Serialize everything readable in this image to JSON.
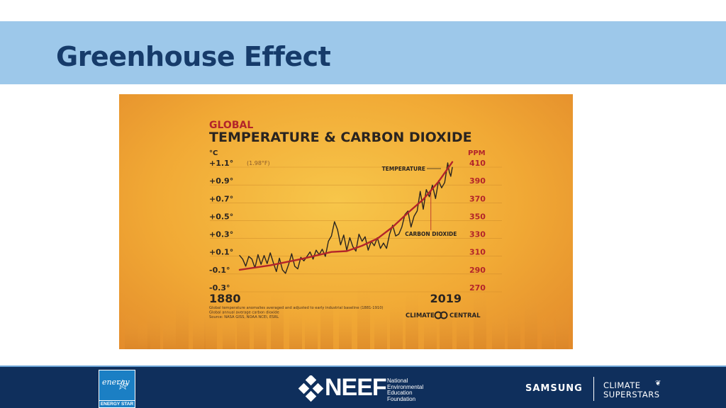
{
  "slide": {
    "title": "Greenhouse Effect"
  },
  "chart_data": {
    "type": "line",
    "title": "TEMPERATURE & CARBON DIOXIDE",
    "subtitle": "GLOBAL",
    "left_axis": {
      "unit": "°C",
      "ticks": [
        "+1.1°",
        "+0.9°",
        "+0.7°",
        "+0.5°",
        "+0.3°",
        "+0.1°",
        "-0.1°",
        "-0.3°"
      ],
      "tick_values": [
        1.1,
        0.9,
        0.7,
        0.5,
        0.3,
        0.1,
        -0.1,
        -0.3
      ],
      "top_note": "(1.98°F)",
      "ylim": [
        -0.3,
        1.1
      ]
    },
    "right_axis": {
      "unit": "PPM",
      "ticks": [
        "410",
        "390",
        "370",
        "350",
        "330",
        "310",
        "290",
        "270"
      ],
      "tick_values": [
        410,
        390,
        370,
        350,
        330,
        310,
        290,
        270
      ],
      "ylim": [
        270,
        410
      ]
    },
    "x_labels": {
      "start": "1880",
      "end": "2019"
    },
    "xlim": [
      1880,
      2019
    ],
    "series": [
      {
        "name": "TEMPERATURE",
        "axis": "left",
        "color": "#2a2420",
        "points": [
          [
            1880,
            0.06
          ],
          [
            1882,
            0.02
          ],
          [
            1884,
            -0.06
          ],
          [
            1886,
            0.05
          ],
          [
            1888,
            0.02
          ],
          [
            1890,
            -0.08
          ],
          [
            1892,
            0.07
          ],
          [
            1894,
            -0.04
          ],
          [
            1896,
            0.06
          ],
          [
            1898,
            -0.03
          ],
          [
            1900,
            0.09
          ],
          [
            1902,
            -0.02
          ],
          [
            1904,
            -0.12
          ],
          [
            1906,
            0.03
          ],
          [
            1908,
            -0.1
          ],
          [
            1910,
            -0.14
          ],
          [
            1912,
            -0.04
          ],
          [
            1914,
            0.08
          ],
          [
            1916,
            -0.06
          ],
          [
            1918,
            -0.09
          ],
          [
            1920,
            0.04
          ],
          [
            1922,
            0.0
          ],
          [
            1924,
            0.05
          ],
          [
            1926,
            0.1
          ],
          [
            1928,
            0.02
          ],
          [
            1930,
            0.12
          ],
          [
            1932,
            0.07
          ],
          [
            1934,
            0.13
          ],
          [
            1936,
            0.05
          ],
          [
            1938,
            0.22
          ],
          [
            1940,
            0.28
          ],
          [
            1942,
            0.44
          ],
          [
            1944,
            0.35
          ],
          [
            1946,
            0.18
          ],
          [
            1948,
            0.29
          ],
          [
            1950,
            0.12
          ],
          [
            1952,
            0.26
          ],
          [
            1954,
            0.16
          ],
          [
            1956,
            0.11
          ],
          [
            1958,
            0.3
          ],
          [
            1960,
            0.22
          ],
          [
            1962,
            0.27
          ],
          [
            1964,
            0.12
          ],
          [
            1966,
            0.22
          ],
          [
            1968,
            0.17
          ],
          [
            1970,
            0.26
          ],
          [
            1972,
            0.14
          ],
          [
            1974,
            0.2
          ],
          [
            1976,
            0.14
          ],
          [
            1978,
            0.3
          ],
          [
            1980,
            0.4
          ],
          [
            1982,
            0.28
          ],
          [
            1984,
            0.3
          ],
          [
            1986,
            0.38
          ],
          [
            1988,
            0.52
          ],
          [
            1990,
            0.56
          ],
          [
            1992,
            0.38
          ],
          [
            1994,
            0.5
          ],
          [
            1996,
            0.56
          ],
          [
            1998,
            0.78
          ],
          [
            2000,
            0.58
          ],
          [
            2002,
            0.8
          ],
          [
            2004,
            0.72
          ],
          [
            2006,
            0.85
          ],
          [
            2008,
            0.7
          ],
          [
            2010,
            0.9
          ],
          [
            2012,
            0.82
          ],
          [
            2014,
            0.88
          ],
          [
            2016,
            1.1
          ],
          [
            2017,
            1.0
          ],
          [
            2018,
            0.95
          ],
          [
            2019,
            1.05
          ]
        ]
      },
      {
        "name": "CARBON DIOXIDE",
        "axis": "right",
        "color": "#b3242a",
        "points": [
          [
            1880,
            290
          ],
          [
            1900,
            295
          ],
          [
            1920,
            302
          ],
          [
            1940,
            310
          ],
          [
            1950,
            311
          ],
          [
            1960,
            317
          ],
          [
            1970,
            325
          ],
          [
            1980,
            338
          ],
          [
            1990,
            354
          ],
          [
            2000,
            369
          ],
          [
            2010,
            389
          ],
          [
            2019,
            411
          ]
        ]
      }
    ],
    "notes": [
      "Global temperature anomalies averaged and adjusted to early industrial baseline (1881-1910)",
      "Global annual average carbon dioxide",
      "Source: NASA GISS, NOAA NCEI, ESRL"
    ],
    "brand": "CLIMATE CENTRAL",
    "grid": true,
    "background_color": "#f2b23e"
  },
  "footer": {
    "energy_star_logo_text": "energy",
    "energy_star_label": "ENERGY STAR",
    "neef_word": "NEEF",
    "neef_sub": [
      "National",
      "Environmental",
      "Education",
      "Foundation"
    ],
    "samsung": "SAMSUNG",
    "climate_superstars": [
      "CLIMATE",
      "SUPERSTARS"
    ]
  }
}
